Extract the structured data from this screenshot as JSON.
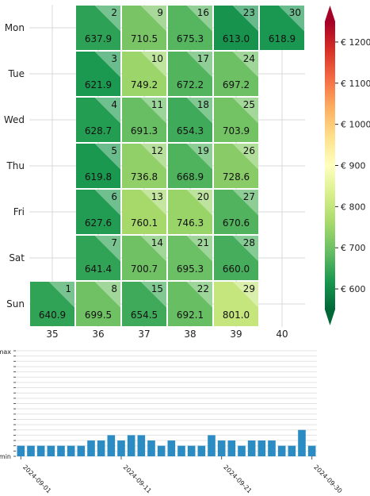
{
  "chart_data": [
    {
      "type": "heatmap",
      "title": "",
      "xlabel": "",
      "ylabel": "",
      "weekdays": [
        "Mon",
        "Tue",
        "Wed",
        "Thu",
        "Fri",
        "Sat",
        "Sun"
      ],
      "weeks": [
        "35",
        "36",
        "37",
        "38",
        "39",
        "40"
      ],
      "first_day": "2024-09-01",
      "days": [
        {
          "day": 1,
          "week": "35",
          "weekday": "Sun",
          "value": 640.9
        },
        {
          "day": 2,
          "week": "36",
          "weekday": "Mon",
          "value": 637.9
        },
        {
          "day": 3,
          "week": "36",
          "weekday": "Tue",
          "value": 621.9
        },
        {
          "day": 4,
          "week": "36",
          "weekday": "Wed",
          "value": 628.7
        },
        {
          "day": 5,
          "week": "36",
          "weekday": "Thu",
          "value": 619.8
        },
        {
          "day": 6,
          "week": "36",
          "weekday": "Fri",
          "value": 627.6
        },
        {
          "day": 7,
          "week": "36",
          "weekday": "Sat",
          "value": 641.4
        },
        {
          "day": 8,
          "week": "36",
          "weekday": "Sun",
          "value": 699.5
        },
        {
          "day": 9,
          "week": "37",
          "weekday": "Mon",
          "value": 710.5
        },
        {
          "day": 10,
          "week": "37",
          "weekday": "Tue",
          "value": 749.2
        },
        {
          "day": 11,
          "week": "37",
          "weekday": "Wed",
          "value": 691.3
        },
        {
          "day": 12,
          "week": "37",
          "weekday": "Thu",
          "value": 736.8
        },
        {
          "day": 13,
          "week": "37",
          "weekday": "Fri",
          "value": 760.1
        },
        {
          "day": 14,
          "week": "37",
          "weekday": "Sat",
          "value": 700.7
        },
        {
          "day": 15,
          "week": "37",
          "weekday": "Sun",
          "value": 654.5
        },
        {
          "day": 16,
          "week": "38",
          "weekday": "Mon",
          "value": 675.3
        },
        {
          "day": 17,
          "week": "38",
          "weekday": "Tue",
          "value": 672.2
        },
        {
          "day": 18,
          "week": "38",
          "weekday": "Wed",
          "value": 654.3
        },
        {
          "day": 19,
          "week": "38",
          "weekday": "Thu",
          "value": 668.9
        },
        {
          "day": 20,
          "week": "38",
          "weekday": "Fri",
          "value": 746.3
        },
        {
          "day": 21,
          "week": "38",
          "weekday": "Sat",
          "value": 695.3
        },
        {
          "day": 22,
          "week": "38",
          "weekday": "Sun",
          "value": 692.1
        },
        {
          "day": 23,
          "week": "39",
          "weekday": "Mon",
          "value": 613.0
        },
        {
          "day": 24,
          "week": "39",
          "weekday": "Tue",
          "value": 697.2
        },
        {
          "day": 25,
          "week": "39",
          "weekday": "Wed",
          "value": 703.9
        },
        {
          "day": 26,
          "week": "39",
          "weekday": "Thu",
          "value": 728.6
        },
        {
          "day": 27,
          "week": "39",
          "weekday": "Fri",
          "value": 670.6
        },
        {
          "day": 28,
          "week": "39",
          "weekday": "Sat",
          "value": 660.0
        },
        {
          "day": 29,
          "week": "39",
          "weekday": "Sun",
          "value": 801.0
        },
        {
          "day": 30,
          "week": "40",
          "weekday": "Mon",
          "value": 618.9
        }
      ],
      "colorbar": {
        "colormap": "red-yellow-green, reversed (low = green, high = red)",
        "min": 550,
        "max": 1250,
        "ticks": [
          600,
          700,
          800,
          900,
          1000,
          1100,
          1200
        ],
        "tick_labels": [
          "€ 600",
          "€ 700",
          "€ 800",
          "€ 900",
          "€ 1000",
          "€ 1100",
          "€ 1200"
        ],
        "extend": "both"
      },
      "grid": true
    },
    {
      "type": "bar",
      "title": "",
      "xlabel": "",
      "ylabel": "",
      "y_tick_labels": {
        "top": "max",
        "bottom": "min"
      },
      "x_tick_labels": [
        "2024-09-01",
        "2024-09-11",
        "2024-09-21",
        "2024-09-30"
      ],
      "bar_color": "#2b8cc4",
      "values": [
        2,
        2,
        2,
        2,
        2,
        2,
        2,
        3,
        3,
        4,
        3,
        4,
        4,
        3,
        2,
        3,
        2,
        2,
        2,
        4,
        3,
        3,
        2,
        3,
        3,
        3,
        2,
        2,
        5,
        2
      ],
      "ylim": [
        0,
        20
      ],
      "grid": true
    }
  ]
}
